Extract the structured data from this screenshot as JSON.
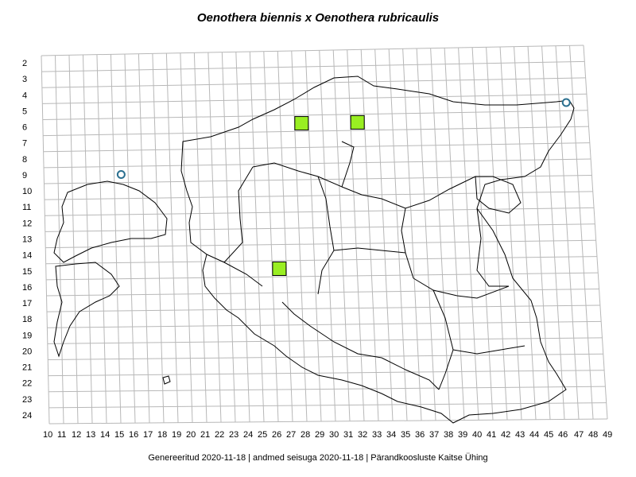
{
  "title": "Oenothera biennis x Oenothera rubricaulis",
  "footer": "Genereeritud 2020-11-18  |  andmed seisuga 2020-11-18  |  Pärandkoosluste Kaitse Ühing",
  "grid": {
    "x_labels": [
      "10",
      "11",
      "12",
      "13",
      "14",
      "15",
      "16",
      "17",
      "18",
      "19",
      "20",
      "21",
      "22",
      "23",
      "24",
      "25",
      "26",
      "27",
      "28",
      "29",
      "30",
      "31",
      "32",
      "33",
      "34",
      "35",
      "36",
      "37",
      "38",
      "39",
      "40",
      "41",
      "42",
      "43",
      "44",
      "45",
      "46",
      "47",
      "48",
      "49"
    ],
    "y_labels": [
      "2",
      "3",
      "4",
      "5",
      "6",
      "7",
      "8",
      "9",
      "10",
      "11",
      "12",
      "13",
      "14",
      "15",
      "16",
      "17",
      "18",
      "19",
      "20",
      "21",
      "22",
      "23",
      "24"
    ]
  },
  "records": [
    {
      "type": "square",
      "col": "28",
      "row": "6"
    },
    {
      "type": "square",
      "col": "32",
      "row": "6"
    },
    {
      "type": "square",
      "col": "26",
      "row": "15"
    },
    {
      "type": "circle",
      "col": "15",
      "row": "9"
    },
    {
      "type": "circle",
      "col": "47",
      "row": "5"
    }
  ],
  "colors": {
    "grid": "#b8b8b8",
    "border": "#000000",
    "square_fill": "#99ee22",
    "circle_stroke": "#2a6f8f"
  }
}
